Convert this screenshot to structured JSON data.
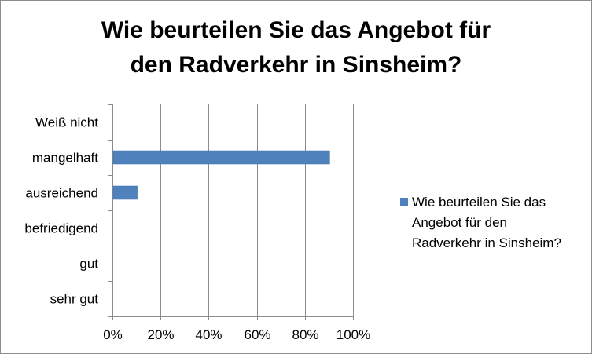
{
  "chart_data": {
    "type": "bar",
    "orientation": "horizontal",
    "title_lines": [
      "Wie beurteilen Sie das Angebot für",
      "den Radverkehr in Sinsheim?"
    ],
    "categories": [
      "Weiß nicht",
      "mangelhaft",
      "ausreichend",
      "befriedigend",
      "gut",
      "sehr gut"
    ],
    "series": [
      {
        "name": "Wie beurteilen  Sie das\nAngebot für den\nRadverkehr in Sinsheim?",
        "values": [
          0,
          90,
          10,
          0,
          0,
          0
        ],
        "color": "#4f81bd"
      }
    ],
    "x_ticks": [
      "0%",
      "20%",
      "40%",
      "60%",
      "80%",
      "100%"
    ],
    "xlim": [
      0,
      100
    ],
    "grid": "vertical",
    "legend_position": "right"
  }
}
